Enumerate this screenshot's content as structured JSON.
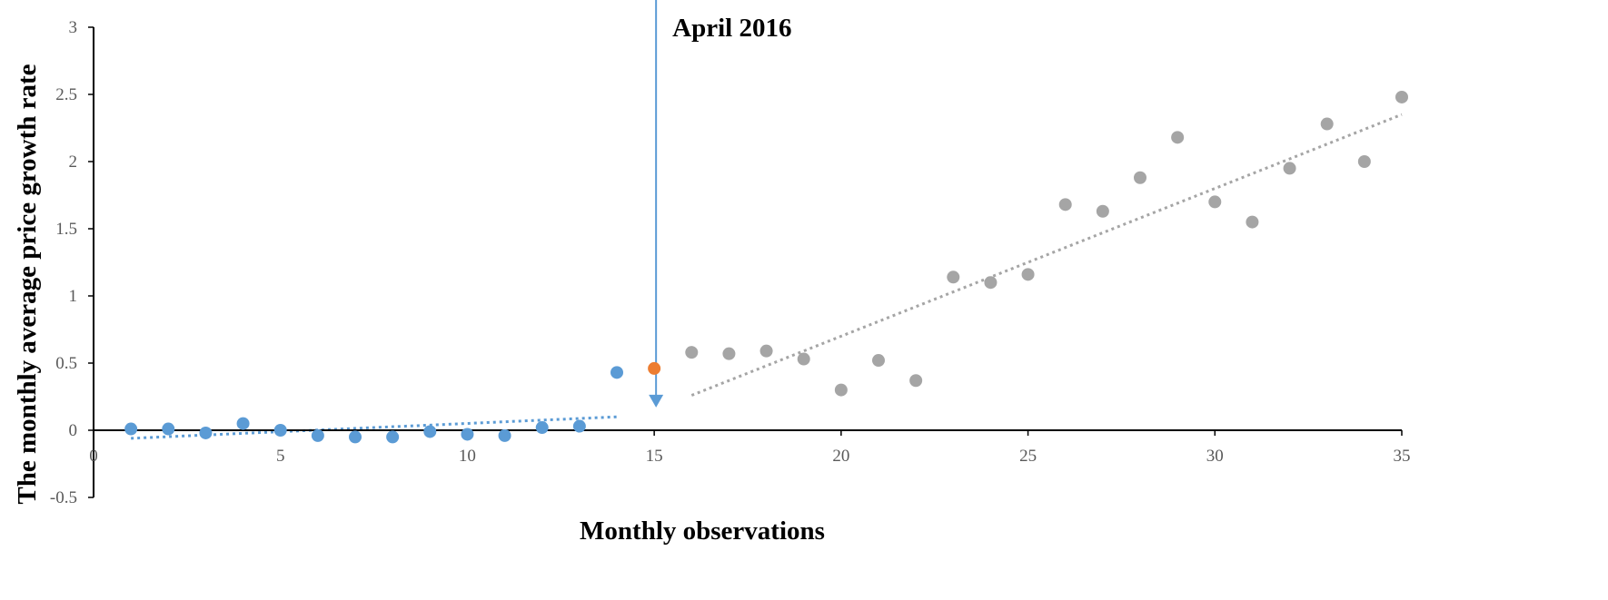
{
  "colors": {
    "before": "#5B9BD5",
    "event": "#ED7D31",
    "after": "#A5A5A5",
    "axis": "#000000",
    "tick_text": "#595959"
  },
  "chart_data": {
    "type": "scatter",
    "title": "",
    "xlabel": "Monthly observations",
    "ylabel": "The monthly average price growth rate",
    "xlim": [
      0,
      35
    ],
    "ylim": [
      -0.5,
      3
    ],
    "xticks": [
      0,
      5,
      10,
      15,
      20,
      25,
      30,
      35
    ],
    "yticks": [
      -0.5,
      0,
      0.5,
      1,
      1.5,
      2,
      2.5,
      3
    ],
    "grid": false,
    "legend": "none",
    "series": [
      {
        "color": "#5B9BD5",
        "x": [
          1,
          2,
          3,
          4,
          5,
          6,
          7,
          8,
          9,
          10,
          11,
          12,
          13,
          14
        ],
        "y": [
          0.01,
          0.01,
          -0.02,
          0.05,
          0.0,
          -0.04,
          -0.05,
          -0.05,
          -0.01,
          -0.03,
          -0.04,
          0.02,
          0.03,
          0.43
        ]
      },
      {
        "color": "#ED7D31",
        "x": [
          15
        ],
        "y": [
          0.46
        ]
      },
      {
        "color": "#A5A5A5",
        "x": [
          16,
          17,
          18,
          19,
          20,
          21,
          22,
          23,
          24,
          25,
          26,
          27,
          28,
          29,
          30,
          31,
          32,
          33,
          34,
          35
        ],
        "y": [
          0.58,
          0.57,
          0.59,
          0.53,
          0.3,
          0.52,
          0.37,
          1.14,
          1.1,
          1.16,
          1.68,
          1.63,
          1.88,
          2.18,
          1.7,
          1.55,
          1.95,
          2.28,
          2.0,
          2.48
        ]
      }
    ],
    "trendlines": [
      {
        "color": "#5B9BD5",
        "style": "dotted",
        "x": [
          1,
          14
        ],
        "y": [
          -0.06,
          0.1
        ]
      },
      {
        "color": "#A5A5A5",
        "style": "dotted",
        "x": [
          16,
          35
        ],
        "y": [
          0.26,
          2.35
        ]
      }
    ],
    "annotations": [
      {
        "text": "April 2016",
        "arrow_x": 15,
        "arrow_to_y": 0.17
      }
    ]
  }
}
